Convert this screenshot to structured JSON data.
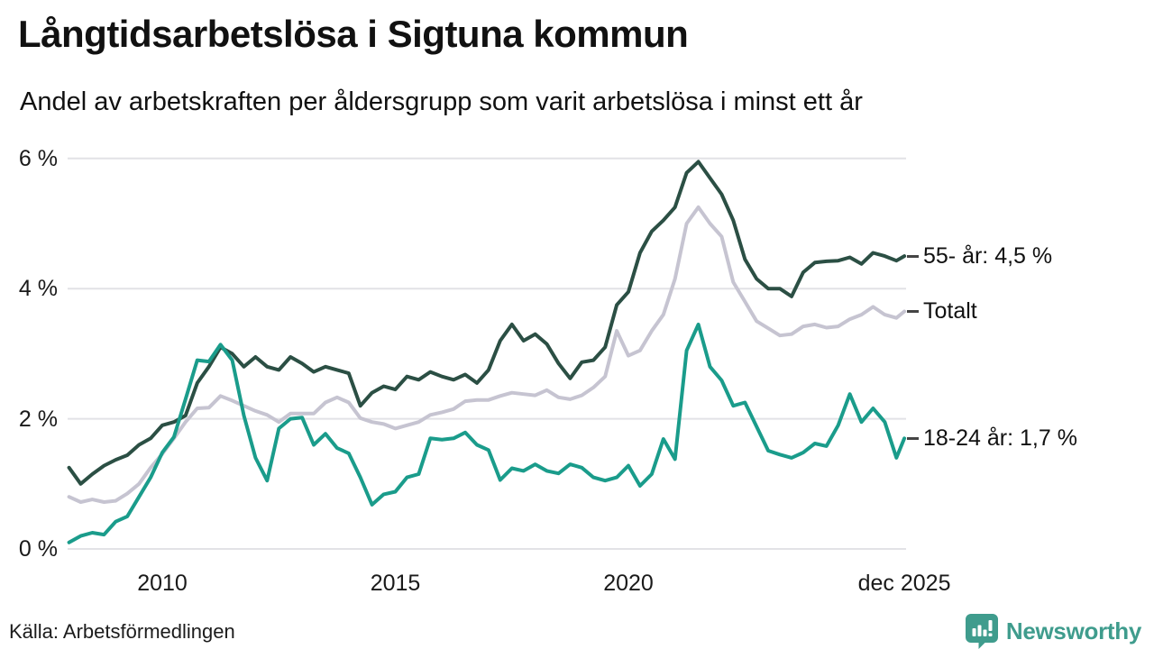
{
  "header": {
    "title": "Långtidsarbetslösa i Sigtuna kommun",
    "subtitle": "Andel av arbetskraften per åldersgrupp som varit arbetslösa i minst ett år"
  },
  "footer": {
    "source": "Källa: Arbetsförmedlingen",
    "brand": "Newsworthy"
  },
  "colors": {
    "series_total": "#C6C4D1",
    "series_55": "#2B4F44",
    "series_1824": "#1A9C8B",
    "grid": "#E2E2E6",
    "text": "#1A1A1A",
    "tick_dash": "#444444",
    "brand": "#3F9C8D"
  },
  "chart_data": {
    "type": "line",
    "title": "Långtidsarbetslösa i Sigtuna kommun",
    "subtitle": "Andel av arbetskraften per åldersgrupp som varit arbetslösa i minst ett år",
    "source": "Källa: Arbetsförmedlingen",
    "ylabel": "",
    "xlabel": "",
    "ylim": [
      0,
      6
    ],
    "xlim": [
      2007.9,
      2026.1
    ],
    "grid": "horizontal",
    "legend_position": "right-end-labels",
    "yticks": [
      {
        "v": 0,
        "label": "0 %"
      },
      {
        "v": 2,
        "label": "2 %"
      },
      {
        "v": 4,
        "label": "4 %"
      },
      {
        "v": 6,
        "label": "6 %"
      }
    ],
    "xticks": [
      {
        "v": 2010,
        "label": "2010"
      },
      {
        "v": 2015,
        "label": "2015"
      },
      {
        "v": 2020,
        "label": "2020"
      },
      {
        "v": 2025.92,
        "label": "dec 2025"
      }
    ],
    "x": [
      2008,
      2008.25,
      2008.5,
      2008.75,
      2009,
      2009.25,
      2009.5,
      2009.75,
      2010,
      2010.25,
      2010.5,
      2010.75,
      2011,
      2011.25,
      2011.5,
      2011.75,
      2012,
      2012.25,
      2012.5,
      2012.75,
      2013,
      2013.25,
      2013.5,
      2013.75,
      2014,
      2014.25,
      2014.5,
      2014.75,
      2015,
      2015.25,
      2015.5,
      2015.75,
      2016,
      2016.25,
      2016.5,
      2016.75,
      2017,
      2017.25,
      2017.5,
      2017.75,
      2018,
      2018.25,
      2018.5,
      2018.75,
      2019,
      2019.25,
      2019.5,
      2019.75,
      2020,
      2020.25,
      2020.5,
      2020.75,
      2021,
      2021.25,
      2021.5,
      2021.75,
      2022,
      2022.25,
      2022.5,
      2022.75,
      2023,
      2023.25,
      2023.5,
      2023.75,
      2024,
      2024.25,
      2024.5,
      2024.75,
      2025,
      2025.25,
      2025.5,
      2025.75,
      2025.92
    ],
    "series": [
      {
        "name": "Totalt",
        "color_key": "series_total",
        "end_label": "Totalt",
        "values": [
          0.8,
          0.72,
          0.76,
          0.72,
          0.74,
          0.85,
          1.0,
          1.25,
          1.46,
          1.7,
          1.95,
          2.16,
          2.17,
          2.35,
          2.28,
          2.2,
          2.12,
          2.06,
          1.95,
          2.08,
          2.08,
          2.08,
          2.25,
          2.33,
          2.25,
          2.01,
          1.95,
          1.92,
          1.85,
          1.9,
          1.95,
          2.06,
          2.1,
          2.15,
          2.27,
          2.29,
          2.29,
          2.35,
          2.4,
          2.38,
          2.36,
          2.44,
          2.33,
          2.3,
          2.36,
          2.48,
          2.65,
          3.35,
          2.97,
          3.05,
          3.35,
          3.6,
          4.15,
          5.0,
          5.25,
          5.0,
          4.8,
          4.1,
          3.8,
          3.5,
          3.39,
          3.28,
          3.3,
          3.42,
          3.45,
          3.4,
          3.42,
          3.53,
          3.6,
          3.72,
          3.6,
          3.55,
          3.65
        ]
      },
      {
        "name": "55- år",
        "color_key": "series_55",
        "end_label": "55- år: 4,5 %",
        "values": [
          1.25,
          1.0,
          1.15,
          1.28,
          1.37,
          1.44,
          1.6,
          1.7,
          1.9,
          1.95,
          2.05,
          2.55,
          2.8,
          3.1,
          3.0,
          2.8,
          2.95,
          2.8,
          2.75,
          2.95,
          2.85,
          2.72,
          2.8,
          2.75,
          2.7,
          2.2,
          2.4,
          2.5,
          2.45,
          2.65,
          2.6,
          2.72,
          2.65,
          2.6,
          2.68,
          2.55,
          2.75,
          3.2,
          3.45,
          3.2,
          3.3,
          3.15,
          2.85,
          2.62,
          2.87,
          2.9,
          3.1,
          3.75,
          3.95,
          4.55,
          4.88,
          5.05,
          5.25,
          5.78,
          5.95,
          5.7,
          5.45,
          5.05,
          4.45,
          4.15,
          4.0,
          4.0,
          3.88,
          4.25,
          4.4,
          4.42,
          4.43,
          4.48,
          4.38,
          4.55,
          4.5,
          4.43,
          4.5
        ]
      },
      {
        "name": "18-24 år",
        "color_key": "series_1824",
        "end_label": "18-24 år: 1,7 %",
        "values": [
          0.1,
          0.2,
          0.25,
          0.22,
          0.42,
          0.5,
          0.8,
          1.1,
          1.48,
          1.72,
          2.3,
          2.9,
          2.88,
          3.14,
          2.9,
          2.05,
          1.4,
          1.05,
          1.85,
          2.0,
          2.02,
          1.6,
          1.77,
          1.55,
          1.47,
          1.1,
          0.68,
          0.84,
          0.88,
          1.1,
          1.15,
          1.7,
          1.68,
          1.7,
          1.79,
          1.6,
          1.52,
          1.06,
          1.24,
          1.2,
          1.3,
          1.2,
          1.16,
          1.3,
          1.25,
          1.1,
          1.05,
          1.1,
          1.28,
          0.97,
          1.15,
          1.69,
          1.38,
          3.05,
          3.45,
          2.8,
          2.59,
          2.2,
          2.25,
          1.88,
          1.51,
          1.45,
          1.4,
          1.48,
          1.62,
          1.58,
          1.9,
          2.38,
          1.95,
          2.16,
          1.95,
          1.4,
          1.7
        ]
      }
    ]
  }
}
